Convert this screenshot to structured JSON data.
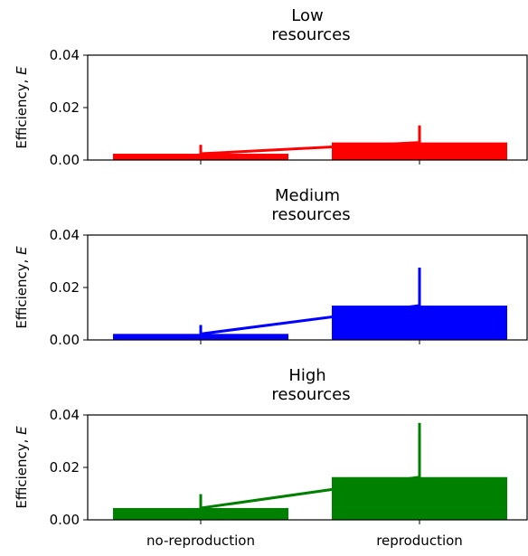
{
  "chart_data": [
    {
      "type": "bar",
      "title": "Low\nresources",
      "ylabel": "Efficiency, E",
      "categories": [
        "no-reproduction",
        "reproduction"
      ],
      "values": [
        0.0024,
        0.0067
      ],
      "errors": [
        0.0034,
        0.0065
      ],
      "line_values": [
        0.0024,
        0.0067
      ],
      "ylim": [
        0,
        0.04
      ],
      "yticks": [
        "0.00",
        "0.02",
        "0.04"
      ],
      "color": "#ff0000"
    },
    {
      "type": "bar",
      "title": "Medium\nresources",
      "ylabel": "Efficiency, E",
      "categories": [
        "no-reproduction",
        "reproduction"
      ],
      "values": [
        0.0023,
        0.0131
      ],
      "errors": [
        0.0034,
        0.0145
      ],
      "line_values": [
        0.0023,
        0.0131
      ],
      "ylim": [
        0,
        0.04
      ],
      "yticks": [
        "0.00",
        "0.02",
        "0.04"
      ],
      "color": "#0000ff"
    },
    {
      "type": "bar",
      "title": "High\nresources",
      "ylabel": "Efficiency, E",
      "categories": [
        "no-reproduction",
        "reproduction"
      ],
      "values": [
        0.0045,
        0.0163
      ],
      "errors": [
        0.0053,
        0.0207
      ],
      "line_values": [
        0.0045,
        0.0163
      ],
      "ylim": [
        0,
        0.04
      ],
      "yticks": [
        "0.00",
        "0.02",
        "0.04"
      ],
      "color": "#008000"
    }
  ]
}
